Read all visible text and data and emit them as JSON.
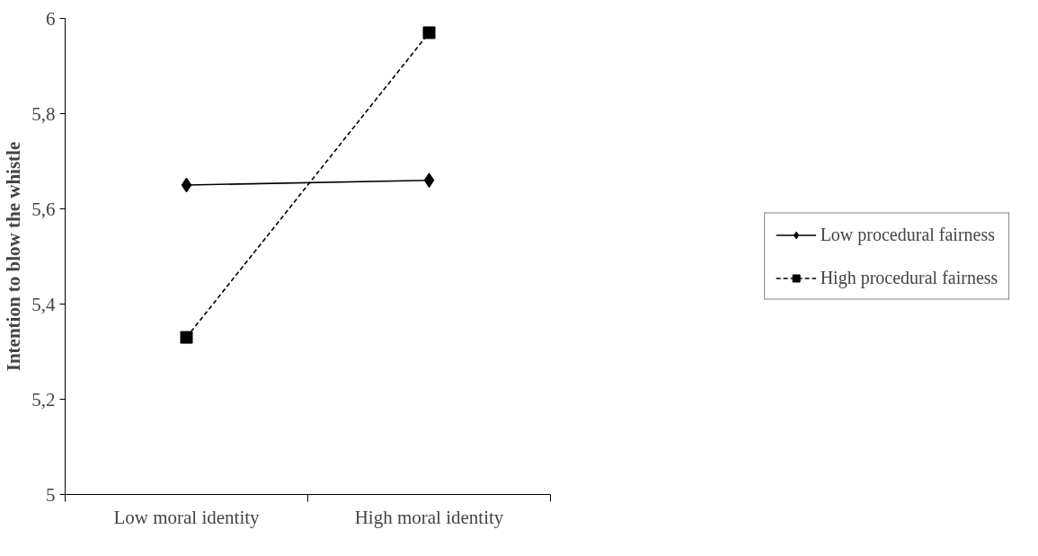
{
  "chart_data": {
    "type": "line",
    "ylabel": "Intention to blow the whistle",
    "categories": [
      "Low moral identity",
      "High moral identity"
    ],
    "series": [
      {
        "name": "Low procedural fairness",
        "color": "#000000",
        "values": [
          5.65,
          5.66
        ],
        "marker": "diamond",
        "line_style": "solid"
      },
      {
        "name": "High procedural fairness",
        "color": "#000000",
        "values": [
          5.33,
          5.97
        ],
        "marker": "square",
        "line_style": "dashed"
      }
    ],
    "ylim": [
      5,
      6
    ],
    "yticks": [
      5,
      {
        "value": 5.2,
        "label": "5,2"
      },
      {
        "value": 5.4,
        "label": "5,4"
      },
      {
        "value": 5.6,
        "label": "5,6"
      },
      {
        "value": 5.8,
        "label": "5,8"
      },
      6
    ],
    "grid": false,
    "legend": "right"
  }
}
